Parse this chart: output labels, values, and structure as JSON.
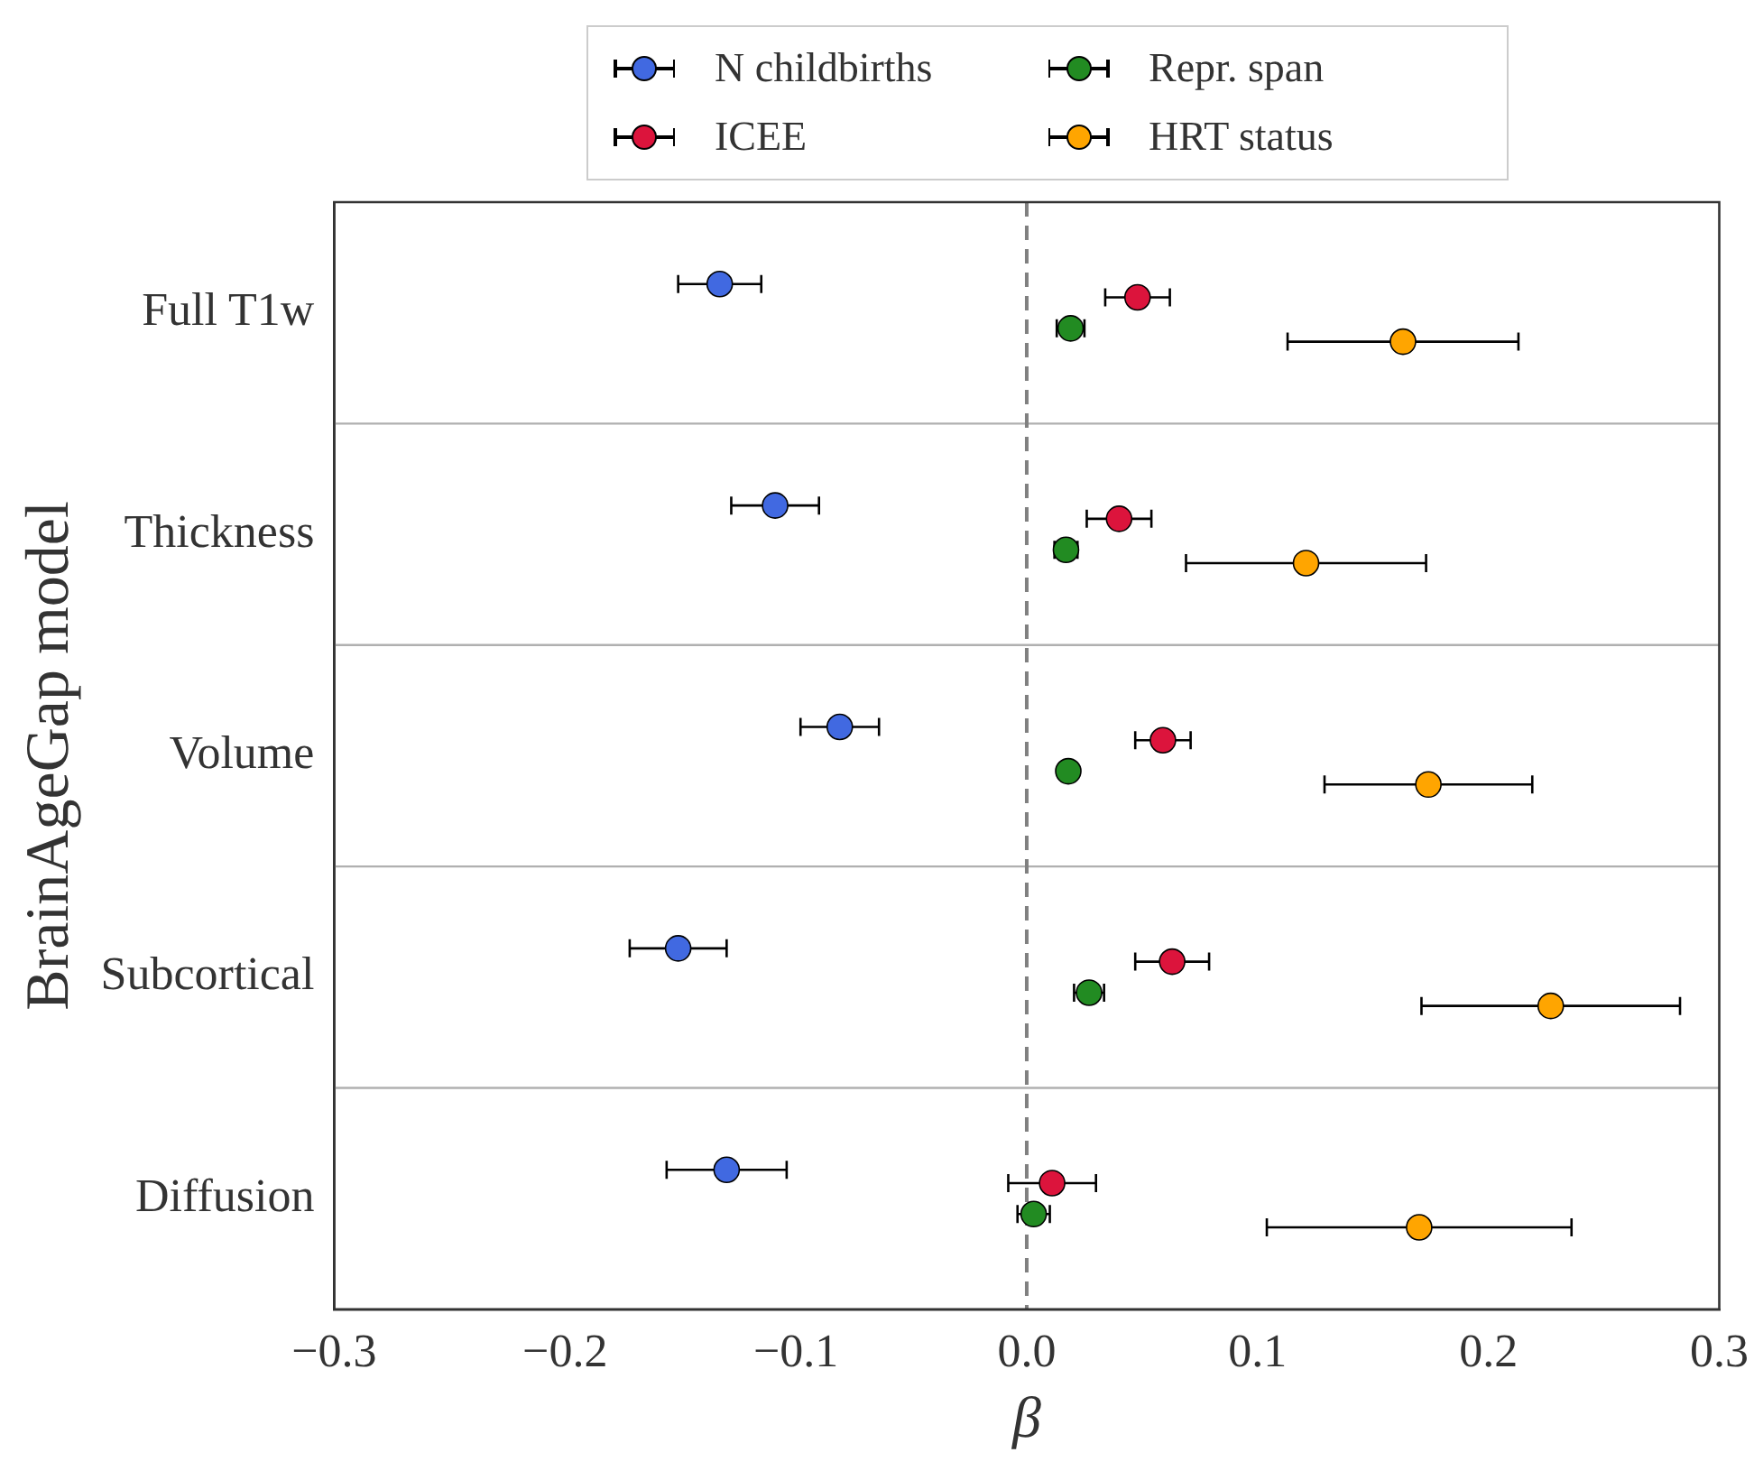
{
  "chart_data": {
    "type": "scatter",
    "orientation": "horizontal",
    "xlabel": "β",
    "ylabel": "BrainAgeGap model",
    "categories": [
      "Full T1w",
      "Thickness",
      "Volume",
      "Subcortical",
      "Diffusion"
    ],
    "xlim": [
      -0.3,
      0.3
    ],
    "xticks": [
      {
        "value": -0.3,
        "label": "−0.3"
      },
      {
        "value": -0.2,
        "label": "−0.2"
      },
      {
        "value": -0.1,
        "label": "−0.1"
      },
      {
        "value": 0,
        "label": "0.0"
      },
      {
        "value": 0.1,
        "label": "0.1"
      },
      {
        "value": 0.2,
        "label": "0.2"
      },
      {
        "value": 0.3,
        "label": "0.3"
      }
    ],
    "grid": "y",
    "legend": "top",
    "marker": "circle",
    "ref_lines": [
      {
        "axis": "x",
        "value": 0,
        "color": "#808080",
        "line_style": "dashed"
      }
    ],
    "series": [
      {
        "name": "N childbirths",
        "color": "#4169e1",
        "values": [
          -0.133,
          -0.109,
          -0.081,
          -0.151,
          -0.13
        ],
        "errors": [
          0.018,
          0.019,
          0.017,
          0.021,
          0.026
        ]
      },
      {
        "name": "ICEE",
        "color": "#dc143c",
        "values": [
          0.048,
          0.04,
          0.059,
          0.063,
          0.011
        ],
        "errors": [
          0.014,
          0.014,
          0.012,
          0.016,
          0.019
        ]
      },
      {
        "name": "Repr. span",
        "color": "#228b22",
        "values": [
          0.019,
          0.017,
          0.018,
          0.027,
          0.003
        ],
        "errors": [
          0.006,
          0.005,
          null,
          0.0065,
          0.007
        ]
      },
      {
        "name": "HRT status",
        "color": "#ffa500",
        "values": [
          0.163,
          0.121,
          0.174,
          0.227,
          0.17
        ],
        "errors": [
          0.05,
          0.052,
          0.045,
          0.056,
          0.066
        ]
      }
    ]
  }
}
